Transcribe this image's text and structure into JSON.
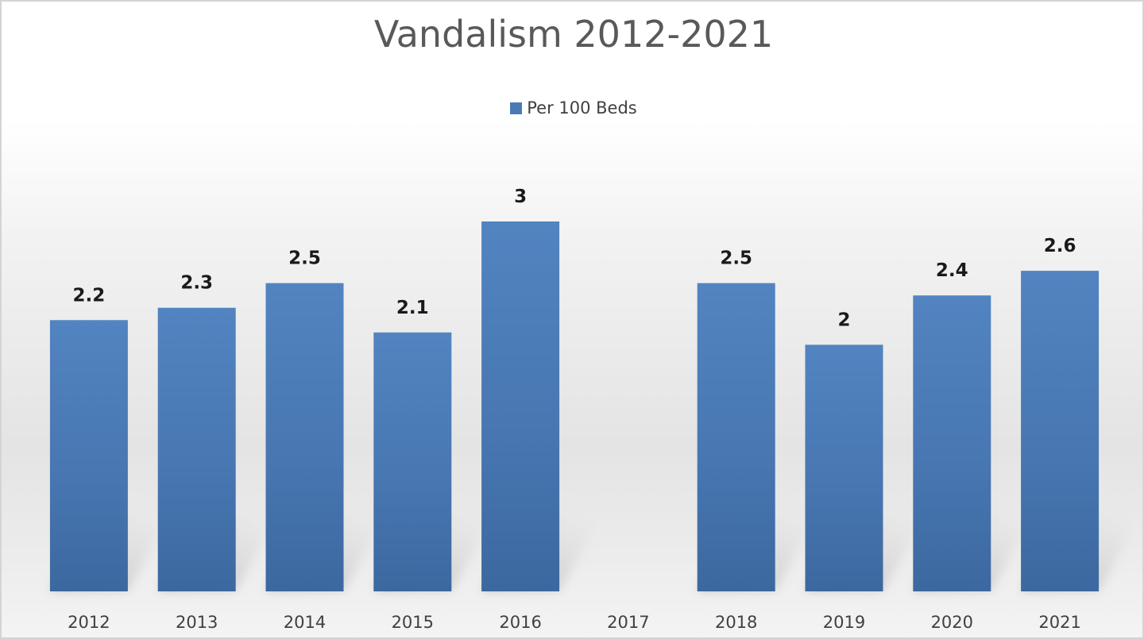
{
  "chart_data": {
    "type": "bar",
    "title": "Vandalism 2012-2021",
    "xlabel": "",
    "ylabel": "",
    "categories": [
      "2012",
      "2013",
      "2014",
      "2015",
      "2016",
      "2017",
      "2018",
      "2019",
      "2020",
      "2021"
    ],
    "series": [
      {
        "name": "Per 100 Beds",
        "values": [
          2.2,
          2.3,
          2.5,
          2.1,
          3,
          null,
          2.5,
          2,
          2.4,
          2.6
        ],
        "labels": [
          "2.2",
          "2.3",
          "2.5",
          "2.1",
          "3",
          "",
          "2.5",
          "2",
          "2.4",
          "2.6"
        ]
      }
    ],
    "ylim": [
      0,
      3
    ],
    "grid": false,
    "legend_position": "top",
    "bar_color": "#4a7ab5"
  }
}
